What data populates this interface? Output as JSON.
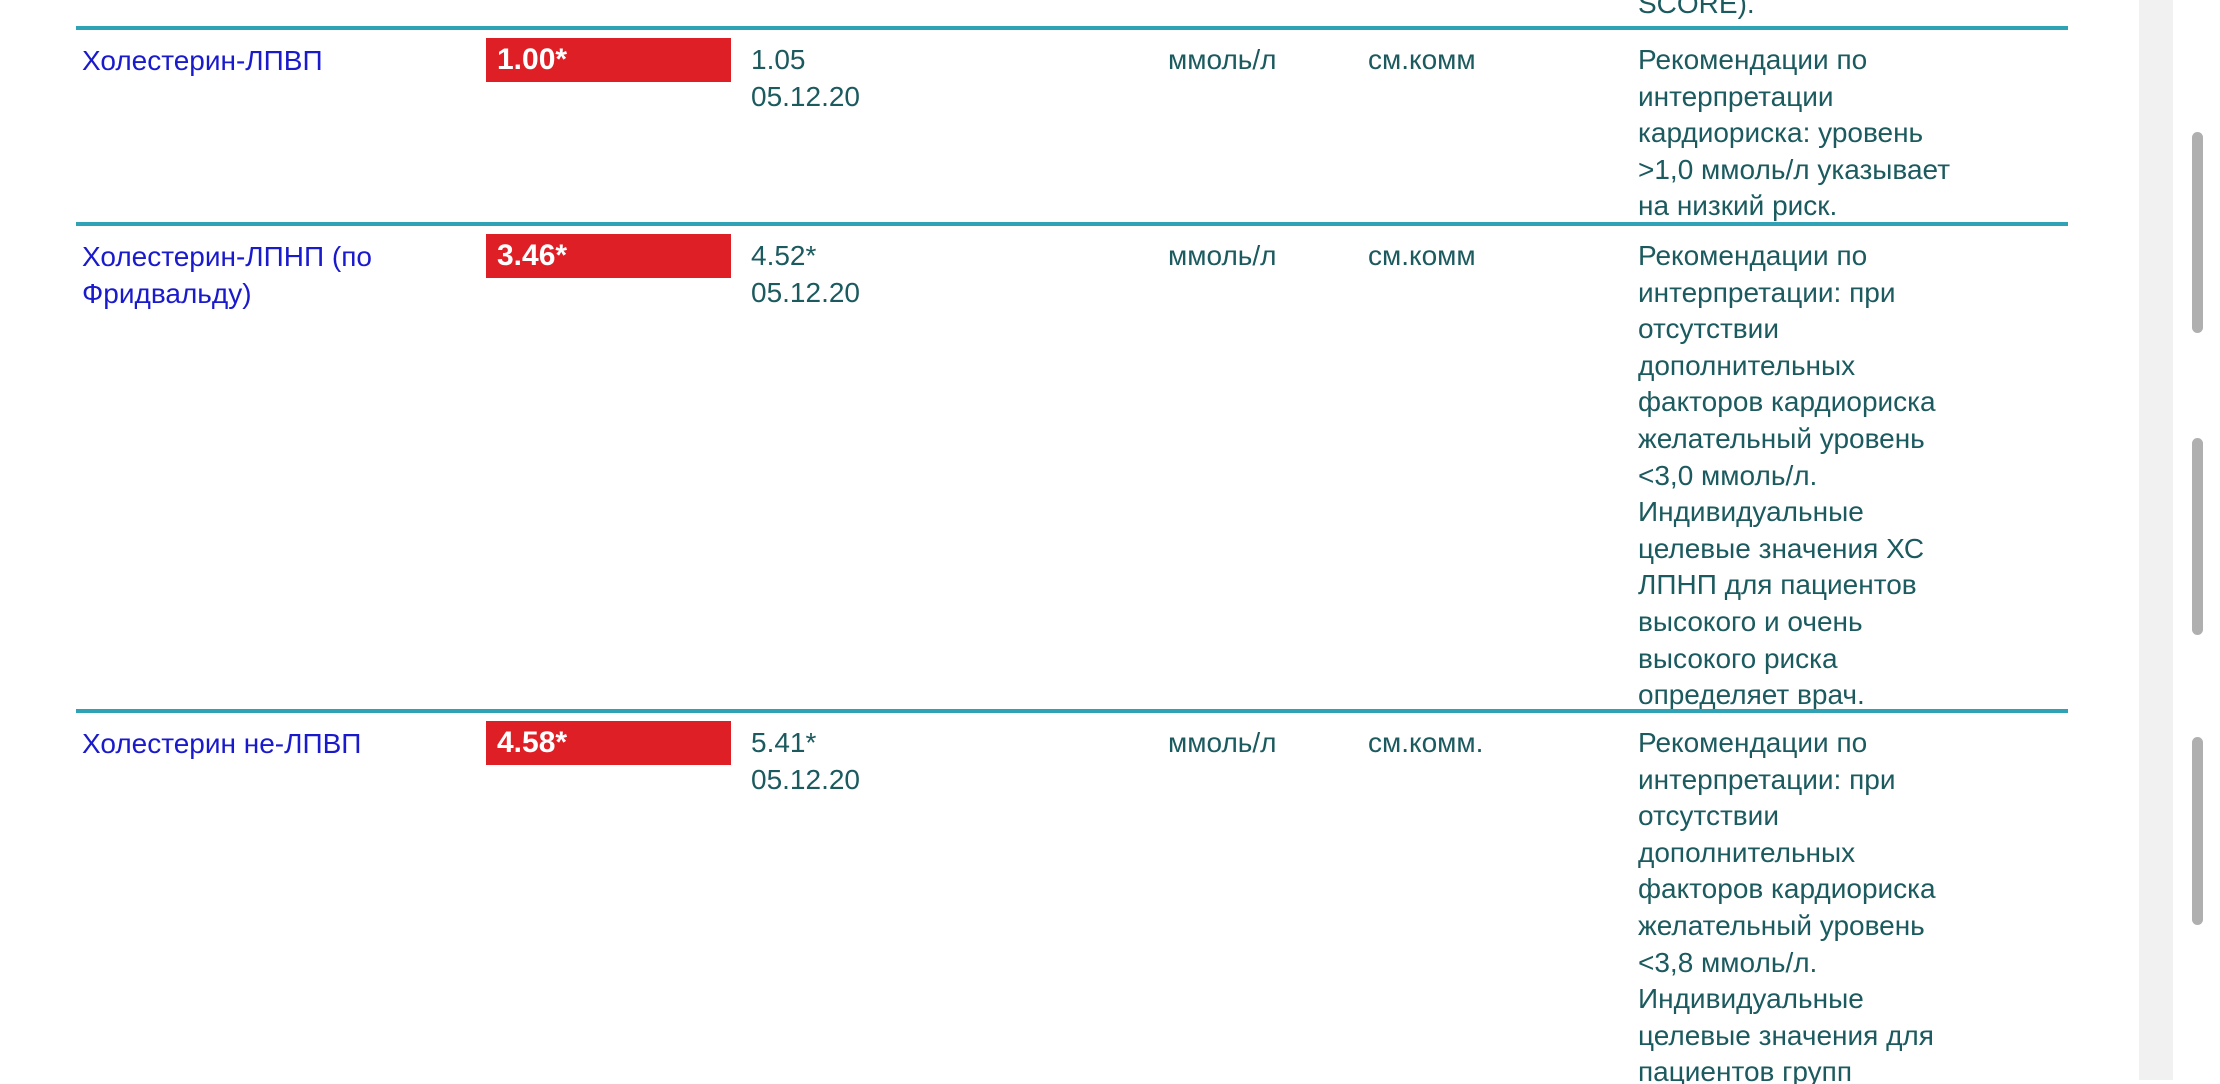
{
  "colors": {
    "row_separator": "#2fa3b5",
    "test_name_text": "#1a1acd",
    "body_text": "#1b5a5e",
    "flag_background": "#de1f26",
    "flag_text": "#ffffff",
    "scrollbar_track": "#f1f1f1",
    "scrollbar_thumb": "#afafaf"
  },
  "previous_row_tail": "SCORE).",
  "table": {
    "rows": [
      {
        "name": "Холестерин-ЛПВП",
        "flag_value": "1.00*",
        "ref_value": "1.05",
        "ref_date": "05.12.20",
        "units": "ммоль/л",
        "ref_note": "см.комм",
        "comment": "Рекомендации по\nинтерпретации\nкардиориска: уровень\n>1,0 ммоль/л указывает\nна низкий риск."
      },
      {
        "name": "Холестерин-ЛПНП (по Фридвальду)",
        "flag_value": "3.46*",
        "ref_value": "4.52*",
        "ref_date": "05.12.20",
        "units": "ммоль/л",
        "ref_note": "см.комм",
        "comment": "Рекомендации по\nинтерпретации: при\nотсутствии\nдополнительных\nфакторов кардиориска\nжелательный уровень\n<3,0 ммоль/л.\nИндивидуальные\nцелевые значения ХС\nЛПНП для пациентов\nвысокого и очень\nвысокого риска\nопределяет врач."
      },
      {
        "name": "Холестерин не-ЛПВП",
        "flag_value": "4.58*",
        "ref_value": "5.41*",
        "ref_date": "05.12.20",
        "units": "ммоль/л",
        "ref_note": "см.комм.",
        "comment": "Рекомендации по\nинтерпретации: при\nотсутствии\nдополнительных\nфакторов кардиориска\nжелательный уровень\n<3,8 ммоль/л.\nИндивидуальные\nцелевые значения для\nпациентов групп"
      }
    ]
  }
}
